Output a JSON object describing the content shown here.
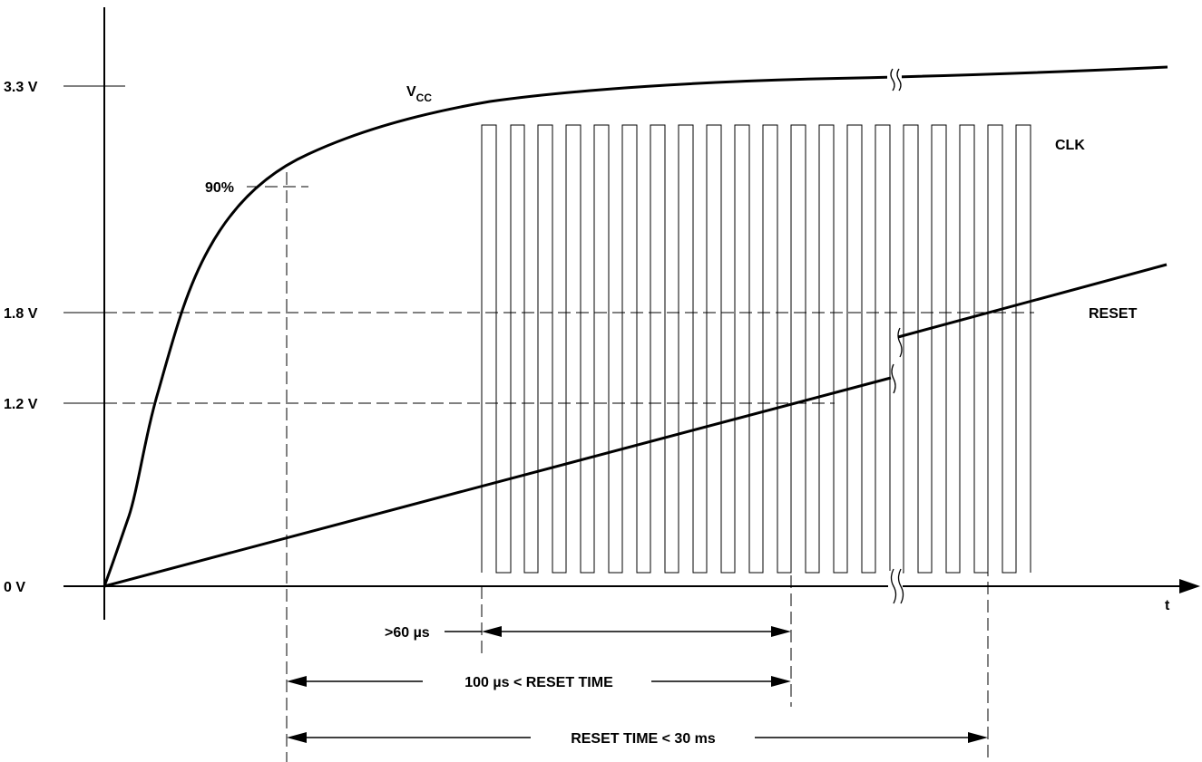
{
  "axes": {
    "y_ticks": [
      "3.3 V",
      "1.8 V",
      "1.2 V",
      "0 V"
    ],
    "x_label": "t"
  },
  "signals": {
    "vcc_main": "V",
    "vcc_sub": "CC",
    "vcc_90pct": "90%",
    "clk": "CLK",
    "reset": "RESET"
  },
  "timing": {
    "min_clock": ">60 µs",
    "min_reset": "100 µs < RESET TIME",
    "max_reset": "RESET TIME < 30 ms"
  }
}
